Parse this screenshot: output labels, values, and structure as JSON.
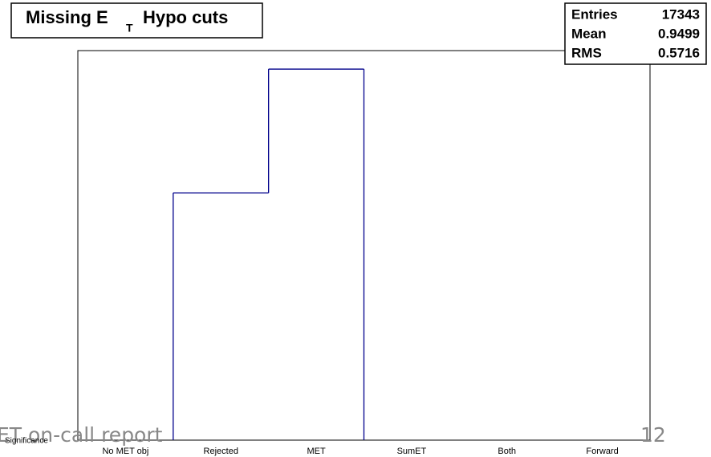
{
  "chart_data": {
    "type": "histogram",
    "title": "Missing E",
    "title_subscript": "T",
    "title_rest": "Hypo cuts",
    "categories": [
      "No MET obj",
      "Rejected",
      "MET",
      "SumET",
      "Both",
      "Forward"
    ],
    "extra_label": "Significance",
    "values": [
      0,
      6936,
      10407,
      0,
      0,
      0
    ],
    "color": "#00008b",
    "ylim": [
      0,
      10927
    ],
    "stats": [
      {
        "label": "Entries",
        "value": 17343
      },
      {
        "label": "Mean",
        "value": 0.9499
      },
      {
        "label": "RMS",
        "value": 0.5716
      }
    ]
  },
  "footer": {
    "text": "ET on-call report",
    "page": "12"
  }
}
